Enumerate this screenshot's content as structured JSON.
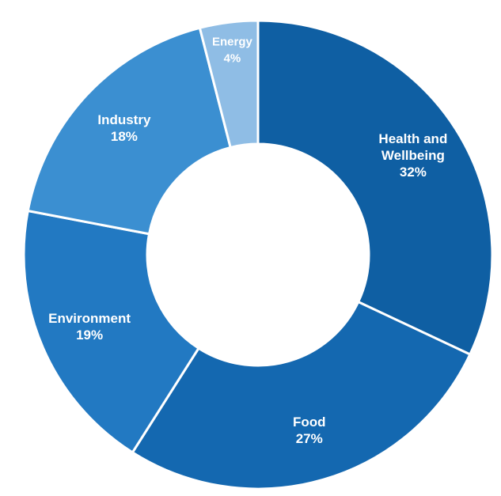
{
  "chart_data": {
    "type": "pie",
    "donut": true,
    "title": "",
    "slices": [
      {
        "label_lines": [
          "Health and",
          "Wellbeing"
        ],
        "value_label": "32%",
        "value": 32,
        "color": "#0f5fa3"
      },
      {
        "label_lines": [
          "Food"
        ],
        "value_label": "27%",
        "value": 27,
        "color": "#1468b0"
      },
      {
        "label_lines": [
          "Environment"
        ],
        "value_label": "19%",
        "value": 19,
        "color": "#2279c2"
      },
      {
        "label_lines": [
          "Industry"
        ],
        "value_label": "18%",
        "value": 18,
        "color": "#3b8fd1"
      },
      {
        "label_lines": [
          "Energy"
        ],
        "value_label": "4%",
        "value": 4,
        "color": "#8fbde5"
      }
    ],
    "start_angle_deg": 0,
    "direction": "clockwise",
    "separator_color": "#ffffff",
    "background_color": "#ffffff"
  }
}
